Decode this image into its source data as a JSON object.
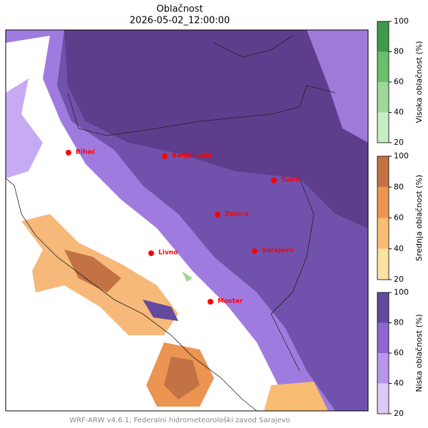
{
  "title": "Oblačnost",
  "subtitle": "2026-05-02_12:00:00",
  "cities": [
    "Bihać",
    "Banja Luka",
    "Tuzla",
    "Zenica",
    "Livno",
    "Sarajevo",
    "Mostar"
  ],
  "colorbars": [
    {
      "label": "Visoka oblačnost (%)",
      "ticks": [
        20,
        40,
        60,
        80,
        100
      ],
      "colors": [
        "#c7efc2",
        "#9ed898",
        "#6cbf6a",
        "#3f9a4c"
      ]
    },
    {
      "label": "Srednja oblačnost (%)",
      "ticks": [
        20,
        40,
        60,
        80,
        100
      ],
      "colors": [
        "#fde2a4",
        "#f8bd72",
        "#ec9452",
        "#c27244"
      ]
    },
    {
      "label": "Niska oblačnost (%)",
      "ticks": [
        20,
        40,
        60,
        80,
        100
      ],
      "colors": [
        "#dcc9f6",
        "#b697ec",
        "#8d66d0",
        "#634a9e"
      ]
    }
  ],
  "footer": "WRF-ARW v4.6.1, Federalni hidrometeorološki zavod Sarajevo"
}
